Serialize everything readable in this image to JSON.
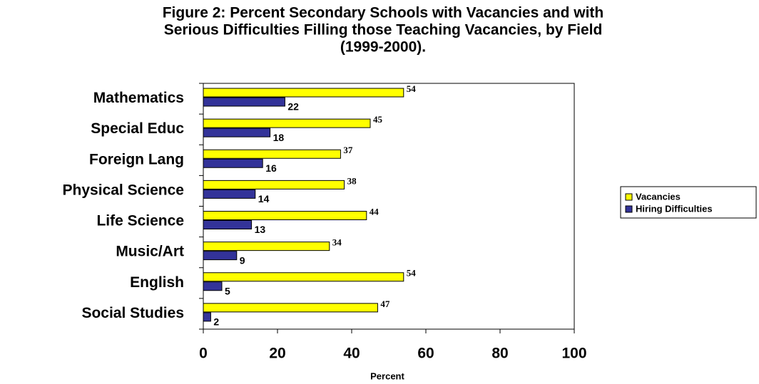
{
  "chart_data": {
    "type": "bar",
    "orientation": "horizontal",
    "title": [
      "Figure 2: Percent Secondary Schools with Vacancies and with",
      "Serious Difficulties Filling those Teaching Vacancies, by Field",
      "(1999-2000)."
    ],
    "categories": [
      "Mathematics",
      "Special Educ",
      "Foreign Lang",
      "Physical Science",
      "Life Science",
      "Music/Art",
      "English",
      "Social Studies"
    ],
    "series": [
      {
        "name": "Vacancies",
        "color": "#ffff00",
        "values": [
          54,
          45,
          37,
          38,
          44,
          34,
          54,
          47
        ]
      },
      {
        "name": "Hiring Difficulties",
        "color": "#333399",
        "values": [
          22,
          18,
          16,
          14,
          13,
          9,
          5,
          2
        ]
      }
    ],
    "xlabel": "Percent",
    "xlim": [
      0,
      100
    ],
    "xticks": [
      0,
      20,
      40,
      60,
      80,
      100
    ],
    "legend": "right"
  }
}
